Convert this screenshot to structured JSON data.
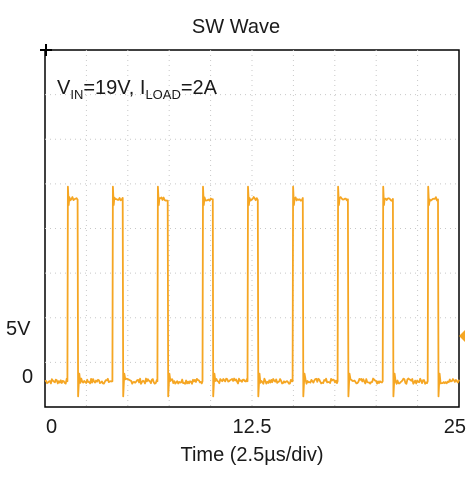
{
  "chart_data": {
    "type": "line",
    "title": "SW Wave",
    "xlabel": "Time (2.5µs/div)",
    "ylabel": "",
    "annotation": {
      "v_main": "V",
      "v_sub": "IN",
      "v_rest": "=19V,  ",
      "i_main": "I",
      "i_sub": "LOAD",
      "i_rest": "=2A"
    },
    "x_ticks": [
      "0",
      "12.5",
      "25"
    ],
    "y_ticks": [
      "0",
      "5V"
    ],
    "xlim": [
      0,
      25
    ],
    "ylim": [
      -1.5,
      22
    ],
    "grid": true,
    "series": [
      {
        "color": "#f5a623",
        "period_us": 2.72,
        "first_rise_us": 1.35,
        "pulse_width_us": 0.62,
        "high_level_v": 12.2,
        "low_level_v": 0.2,
        "cycles": 9
      }
    ]
  }
}
